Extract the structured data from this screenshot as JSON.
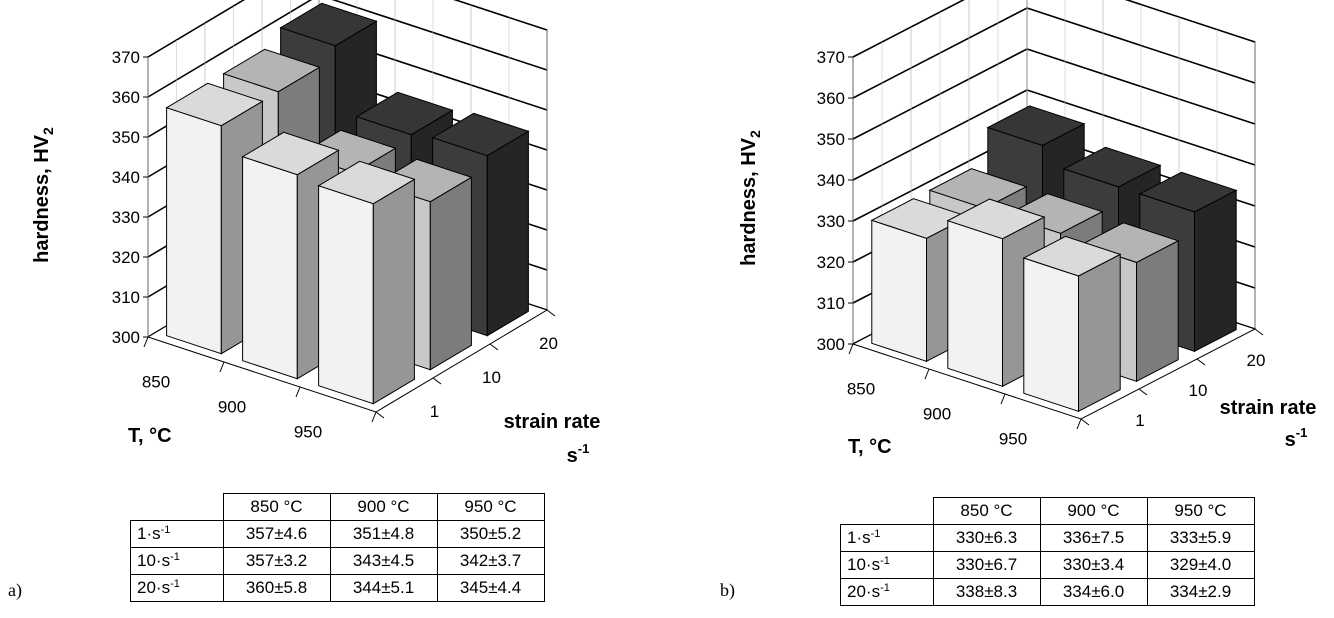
{
  "chart_data": [
    {
      "type": "bar",
      "panel_label": "a)",
      "ylabel": "hardness, HV",
      "ylabel_subscript": "2",
      "xlabel": "T, °C",
      "zlabel_line1": "strain rate",
      "zlabel_line2": "s",
      "zlabel_sup": "-1",
      "temperatures": [
        "850",
        "900",
        "950"
      ],
      "strain_rates": [
        "1",
        "10",
        "20"
      ],
      "ylim": [
        300,
        370
      ],
      "yticks": [
        "300",
        "310",
        "320",
        "330",
        "340",
        "350",
        "360",
        "370"
      ],
      "series": [
        {
          "strain_rate": "1",
          "values": [
            357,
            351,
            350
          ]
        },
        {
          "strain_rate": "10",
          "values": [
            357,
            343,
            342
          ]
        },
        {
          "strain_rate": "20",
          "values": [
            360,
            344,
            345
          ]
        }
      ],
      "table": {
        "headers": [
          "850 °C",
          "900 °C",
          "950 °C"
        ],
        "rows": [
          {
            "label": "1·s",
            "sup": "-1",
            "cells": [
              "357±4.6",
              "351±4.8",
              "350±5.2"
            ]
          },
          {
            "label": "10·s",
            "sup": "-1",
            "cells": [
              "357±3.2",
              "343±4.5",
              "342±3.7"
            ]
          },
          {
            "label": "20·s",
            "sup": "-1",
            "cells": [
              "360±5.8",
              "344±5.1",
              "345±4.4"
            ]
          }
        ]
      },
      "colors": {
        "row0": "#f2f2f2",
        "row1": "#c8c8c8",
        "row2": "#3c3c3c"
      }
    },
    {
      "type": "bar",
      "panel_label": "b)",
      "ylabel": "hardness, HV",
      "ylabel_subscript": "2",
      "xlabel": "T, °C",
      "zlabel_line1": "strain rate",
      "zlabel_line2": "s",
      "zlabel_sup": "-1",
      "temperatures": [
        "850",
        "900",
        "950"
      ],
      "strain_rates": [
        "1",
        "10",
        "20"
      ],
      "ylim": [
        300,
        370
      ],
      "yticks": [
        "300",
        "310",
        "320",
        "330",
        "340",
        "350",
        "360",
        "370"
      ],
      "series": [
        {
          "strain_rate": "1",
          "values": [
            330,
            336,
            333
          ]
        },
        {
          "strain_rate": "10",
          "values": [
            330,
            330,
            329
          ]
        },
        {
          "strain_rate": "20",
          "values": [
            338,
            334,
            334
          ]
        }
      ],
      "table": {
        "headers": [
          "850 °C",
          "900 °C",
          "950 °C"
        ],
        "rows": [
          {
            "label": "1·s",
            "sup": "-1",
            "cells": [
              "330±6.3",
              "336±7.5",
              "333±5.9"
            ]
          },
          {
            "label": "10·s",
            "sup": "-1",
            "cells": [
              "330±6.7",
              "330±3.4",
              "329±4.0"
            ]
          },
          {
            "label": "20·s",
            "sup": "-1",
            "cells": [
              "338±8.3",
              "334±6.0",
              "334±2.9"
            ]
          }
        ]
      },
      "colors": {
        "row0": "#f2f2f2",
        "row1": "#c8c8c8",
        "row2": "#3c3c3c"
      }
    }
  ]
}
